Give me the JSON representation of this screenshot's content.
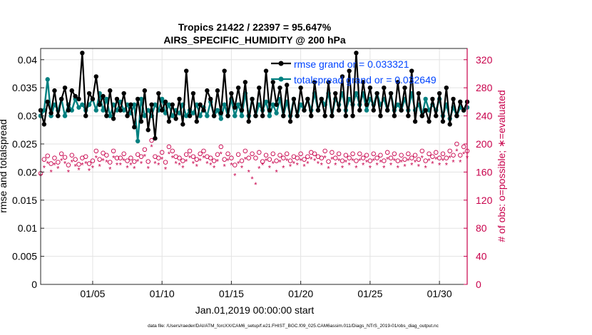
{
  "chart_data": {
    "type": "line",
    "title": "Tropics 21422 / 22397 = 95.647%",
    "subtitle": "AIRS_SPECIFIC_HUMIDITY @ 200 hPa",
    "xlabel": "Jan.01,2019 00:00:00 start",
    "ylabel_left": "rmse and totalspread",
    "ylabel_right": "# of obs: o=possible; ∗=evaluated",
    "footer": "data file: /Users/raeder/DAI/ATM_forcXX/CAM6_setup/f.e21.FHIST_BGC.f09_025.CAM6assim.011/Diags_NTrS_2019-01/obs_diag_output.nc",
    "xlim": [
      1.25,
      32.0
    ],
    "ylim_left": [
      0,
      0.042
    ],
    "ylim_right": [
      0,
      336
    ],
    "x_ticks": [
      5,
      10,
      15,
      20,
      25,
      30
    ],
    "x_tick_labels": [
      "01/05",
      "01/10",
      "01/15",
      "01/20",
      "01/25",
      "01/30"
    ],
    "y_left_ticks": [
      0,
      0.005,
      0.01,
      0.015,
      0.02,
      0.025,
      0.03,
      0.035,
      0.04
    ],
    "y_left_tick_labels": [
      "0",
      "0.005",
      "0.01",
      "0.015",
      "0.02",
      "0.025",
      "0.03",
      "0.035",
      "0.04"
    ],
    "y_right_ticks": [
      0,
      40,
      80,
      120,
      160,
      200,
      240,
      280,
      320
    ],
    "y_right_tick_labels": [
      "0",
      "40",
      "80",
      "120",
      "160",
      "200",
      "240",
      "280",
      "320"
    ],
    "legend": {
      "position": "top-right",
      "entries": [
        "rmse grand or = 0.033321",
        "totalspread grand or = 0.032649"
      ]
    },
    "colors": {
      "rmse": "#000000",
      "spread": "#008080",
      "obs": "#c8004b",
      "legend_text": "#0044ff"
    },
    "x": [
      1.25,
      1.5,
      1.75,
      2,
      2.25,
      2.5,
      2.75,
      3,
      3.25,
      3.5,
      3.75,
      4,
      4.25,
      4.5,
      4.75,
      5,
      5.25,
      5.5,
      5.75,
      6,
      6.25,
      6.5,
      6.75,
      7,
      7.25,
      7.5,
      7.75,
      8,
      8.25,
      8.5,
      8.75,
      9,
      9.25,
      9.5,
      9.75,
      10,
      10.25,
      10.5,
      10.75,
      11,
      11.25,
      11.5,
      11.75,
      12,
      12.25,
      12.5,
      12.75,
      13,
      13.25,
      13.5,
      13.75,
      14,
      14.25,
      14.5,
      14.75,
      15,
      15.25,
      15.5,
      15.75,
      16,
      16.25,
      16.5,
      16.75,
      17,
      17.25,
      17.5,
      17.75,
      18,
      18.25,
      18.5,
      18.75,
      19,
      19.25,
      19.5,
      19.75,
      20,
      20.25,
      20.5,
      20.75,
      21,
      21.25,
      21.5,
      21.75,
      22,
      22.25,
      22.5,
      22.75,
      23,
      23.25,
      23.5,
      23.75,
      24,
      24.25,
      24.5,
      24.75,
      25,
      25.25,
      25.5,
      25.75,
      26,
      26.25,
      26.5,
      26.75,
      27,
      27.25,
      27.5,
      27.75,
      28,
      28.25,
      28.5,
      28.75,
      29,
      29.25,
      29.5,
      29.75,
      30,
      30.25,
      30.5,
      30.75,
      31,
      31.25,
      31.5,
      31.75,
      32
    ],
    "series": [
      {
        "name": "rmse",
        "values": [
          0.031,
          0.0285,
          0.0325,
          0.0305,
          0.0345,
          0.03,
          0.033,
          0.035,
          0.031,
          0.0345,
          0.0335,
          0.033,
          0.0412,
          0.03,
          0.034,
          0.033,
          0.037,
          0.032,
          0.0335,
          0.03,
          0.0345,
          0.0295,
          0.033,
          0.031,
          0.034,
          0.03,
          0.032,
          0.028,
          0.033,
          0.029,
          0.0345,
          0.0275,
          0.032,
          0.026,
          0.034,
          0.031,
          0.0325,
          0.029,
          0.032,
          0.0295,
          0.033,
          0.0285,
          0.038,
          0.03,
          0.034,
          0.029,
          0.032,
          0.031,
          0.0345,
          0.033,
          0.03,
          0.0345,
          0.0305,
          0.038,
          0.03,
          0.034,
          0.0315,
          0.035,
          0.031,
          0.036,
          0.029,
          0.033,
          0.03,
          0.035,
          0.03,
          0.038,
          0.031,
          0.036,
          0.032,
          0.035,
          0.03,
          0.0355,
          0.029,
          0.033,
          0.03,
          0.035,
          0.031,
          0.033,
          0.03,
          0.036,
          0.031,
          0.033,
          0.03,
          0.036,
          0.03,
          0.034,
          0.031,
          0.037,
          0.03,
          0.038,
          0.03,
          0.0412,
          0.031,
          0.036,
          0.032,
          0.035,
          0.031,
          0.034,
          0.03,
          0.035,
          0.031,
          0.034,
          0.03,
          0.036,
          0.031,
          0.035,
          0.03,
          0.038,
          0.029,
          0.034,
          0.03,
          0.031,
          0.029,
          0.033,
          0.03,
          0.034,
          0.029,
          0.035,
          0.0285,
          0.033,
          0.03,
          0.0325,
          0.031,
          0.0325
        ]
      },
      {
        "name": "totalspread",
        "values": [
          0.03,
          0.031,
          0.0365,
          0.03,
          0.032,
          0.031,
          0.033,
          0.03,
          0.032,
          0.031,
          0.033,
          0.0315,
          0.032,
          0.031,
          0.032,
          0.033,
          0.031,
          0.034,
          0.031,
          0.033,
          0.03,
          0.032,
          0.031,
          0.0325,
          0.031,
          0.032,
          0.0305,
          0.032,
          0.0255,
          0.033,
          0.03,
          0.031,
          0.03,
          0.032,
          0.031,
          0.033,
          0.0305,
          0.032,
          0.03,
          0.031,
          0.0305,
          0.032,
          0.03,
          0.031,
          0.0305,
          0.032,
          0.03,
          0.0315,
          0.03,
          0.0325,
          0.03,
          0.031,
          0.0295,
          0.032,
          0.03,
          0.033,
          0.03,
          0.032,
          0.03,
          0.034,
          0.03,
          0.033,
          0.03,
          0.032,
          0.031,
          0.0325,
          0.03,
          0.032,
          0.0305,
          0.033,
          0.03,
          0.0325,
          0.03,
          0.033,
          0.03,
          0.032,
          0.031,
          0.033,
          0.031,
          0.034,
          0.031,
          0.033,
          0.032,
          0.034,
          0.03,
          0.033,
          0.032,
          0.034,
          0.031,
          0.033,
          0.032,
          0.034,
          0.032,
          0.034,
          0.031,
          0.033,
          0.032,
          0.034,
          0.032,
          0.033,
          0.031,
          0.034,
          0.031,
          0.032,
          0.031,
          0.033,
          0.031,
          0.034,
          0.031,
          0.032,
          0.03,
          0.033,
          0.031,
          0.032,
          0.031,
          0.033,
          0.03,
          0.032,
          0.0295,
          0.0315,
          0.03,
          0.0315,
          0.031,
          0.0315
        ]
      },
      {
        "name": "obs_possible",
        "axis": "right",
        "values": [
          158,
          178,
          183,
          172,
          180,
          174,
          186,
          181,
          170,
          184,
          178,
          171,
          180,
          182,
          172,
          176,
          190,
          178,
          187,
          184,
          174,
          190,
          180,
          180,
          186,
          176,
          180,
          175,
          185,
          182,
          192,
          175,
          205,
          182,
          180,
          188,
          174,
          196,
          190,
          182,
          180,
          176,
          185,
          190,
          182,
          178,
          186,
          190,
          182,
          180,
          176,
          185,
          196,
          178,
          186,
          180,
          170,
          185,
          176,
          190,
          180,
          186,
          180,
          188,
          175,
          184,
          178,
          186,
          176,
          184,
          180,
          186,
          176,
          182,
          180,
          186,
          178,
          182,
          188,
          186,
          182,
          180,
          190,
          175,
          188,
          180,
          186,
          176,
          184,
          180,
          186,
          176,
          186,
          180,
          184,
          176,
          186,
          180,
          184,
          176,
          188,
          180,
          186,
          176,
          184,
          178,
          186,
          180,
          184,
          178,
          190,
          176,
          186,
          182,
          188,
          180,
          186,
          180,
          190,
          184,
          200,
          184,
          196,
          190
        ]
      },
      {
        "name": "obs_evaluated",
        "axis": "right",
        "values": [
          155,
          166,
          172,
          160,
          170,
          165,
          176,
          172,
          160,
          174,
          168,
          163,
          170,
          172,
          162,
          166,
          180,
          168,
          176,
          174,
          164,
          180,
          170,
          170,
          176,
          166,
          170,
          165,
          175,
          172,
          182,
          165,
          196,
          172,
          170,
          178,
          164,
          186,
          180,
          172,
          170,
          166,
          175,
          180,
          172,
          168,
          176,
          180,
          172,
          170,
          166,
          175,
          186,
          168,
          176,
          170,
          155,
          172,
          166,
          178,
          160,
          150,
          142,
          165,
          170,
          176,
          166,
          172,
          160,
          174,
          166,
          176,
          168,
          172,
          170,
          176,
          168,
          172,
          178,
          176,
          172,
          170,
          180,
          165,
          178,
          170,
          176,
          166,
          174,
          170,
          176,
          166,
          176,
          170,
          174,
          166,
          176,
          170,
          174,
          166,
          178,
          170,
          176,
          166,
          174,
          168,
          176,
          170,
          174,
          168,
          180,
          166,
          176,
          172,
          178,
          170,
          176,
          170,
          180,
          174,
          190,
          174,
          186,
          180
        ]
      }
    ]
  }
}
